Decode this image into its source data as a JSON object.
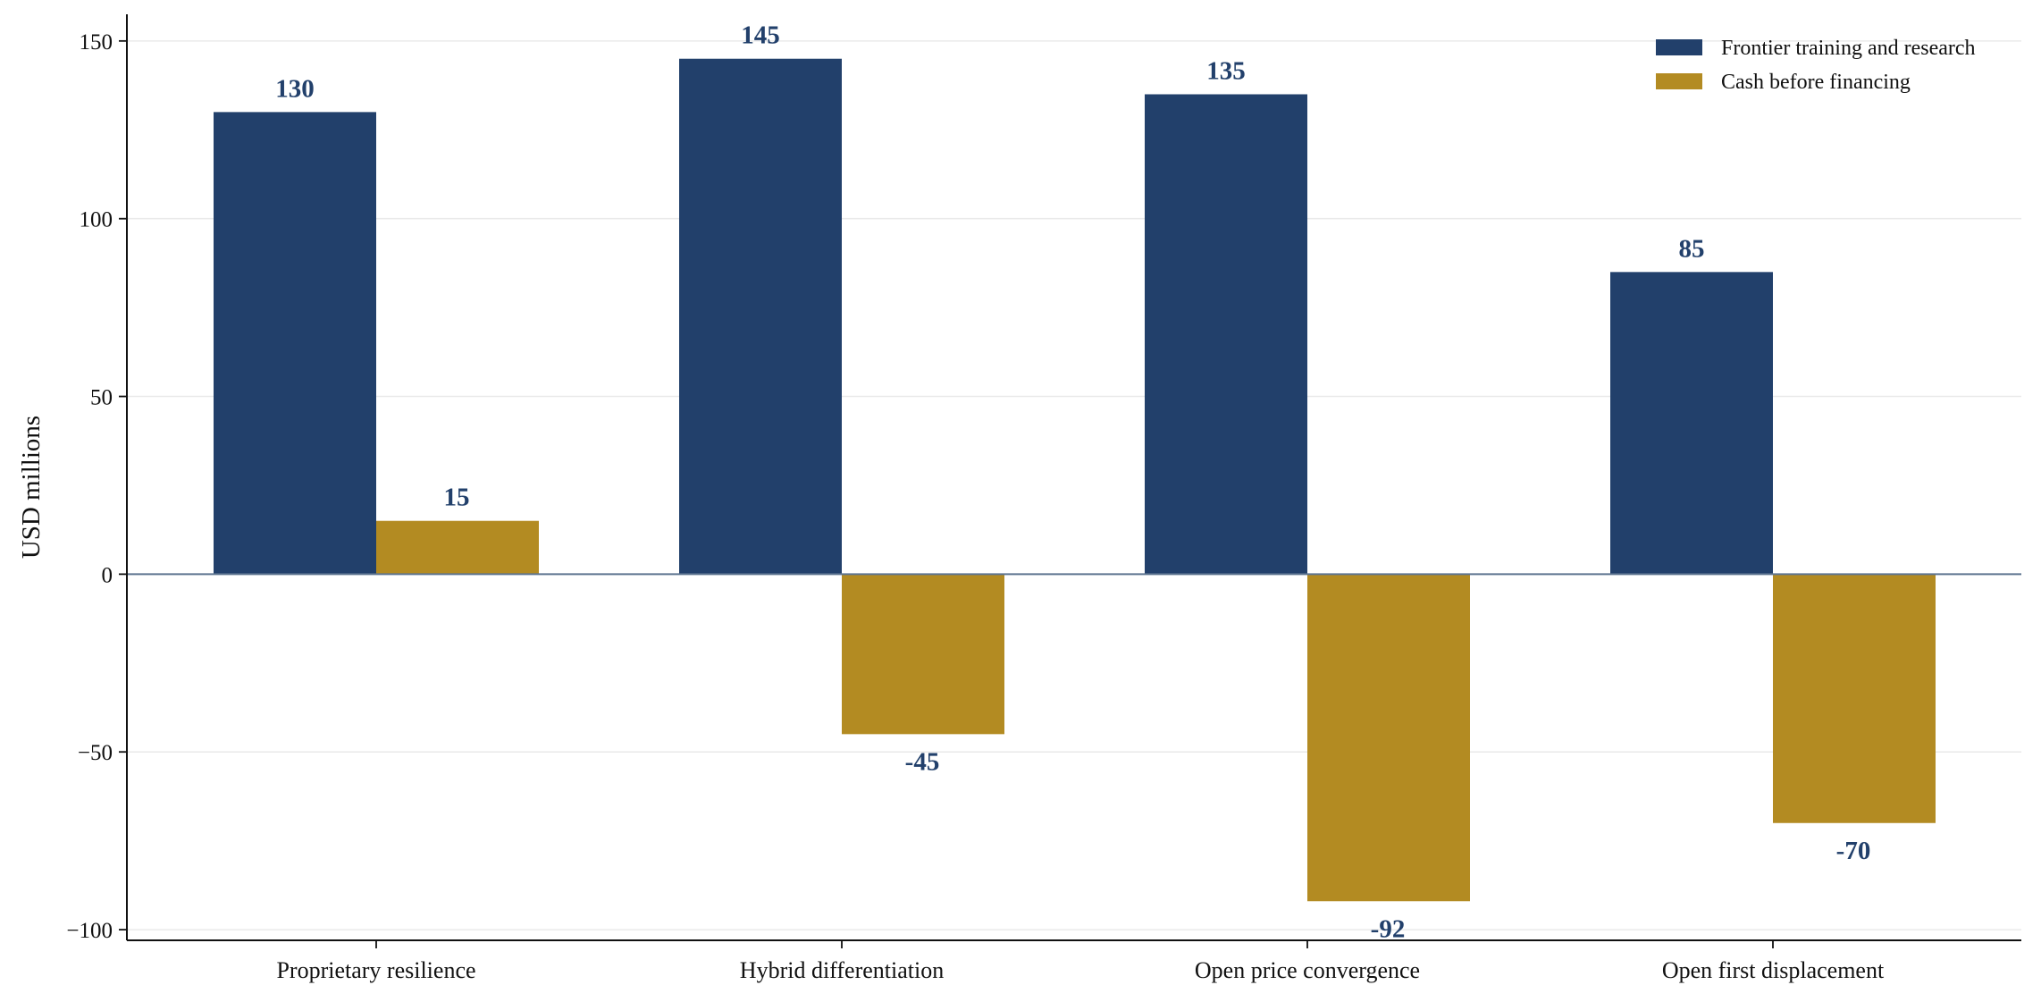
{
  "chart_data": {
    "type": "bar",
    "categories": [
      "Proprietary resilience",
      "Hybrid differentiation",
      "Open price convergence",
      "Open first displacement"
    ],
    "series": [
      {
        "name": "Frontier training and research",
        "values": [
          130,
          145,
          135,
          85
        ],
        "color": "#22406b"
      },
      {
        "name": "Cash before financing",
        "values": [
          15,
          -45,
          -92,
          -70
        ],
        "color": "#b38b22"
      }
    ],
    "data_labels": [
      [
        "130",
        "145",
        "135",
        "85"
      ],
      [
        "15",
        "-45",
        "-92",
        "-70"
      ]
    ],
    "ylabel": "USD millions",
    "ylim": [
      -103,
      157
    ],
    "yticks": [
      150,
      100,
      50,
      0,
      -50,
      -100
    ],
    "ytick_labels": [
      "150",
      "100",
      "50",
      "0",
      "−50",
      "−100"
    ],
    "grid": true,
    "legend": "top-right",
    "label_color": "#22406b",
    "zero_line_color": "#5e7590",
    "grid_color": "#e9e9e9"
  }
}
